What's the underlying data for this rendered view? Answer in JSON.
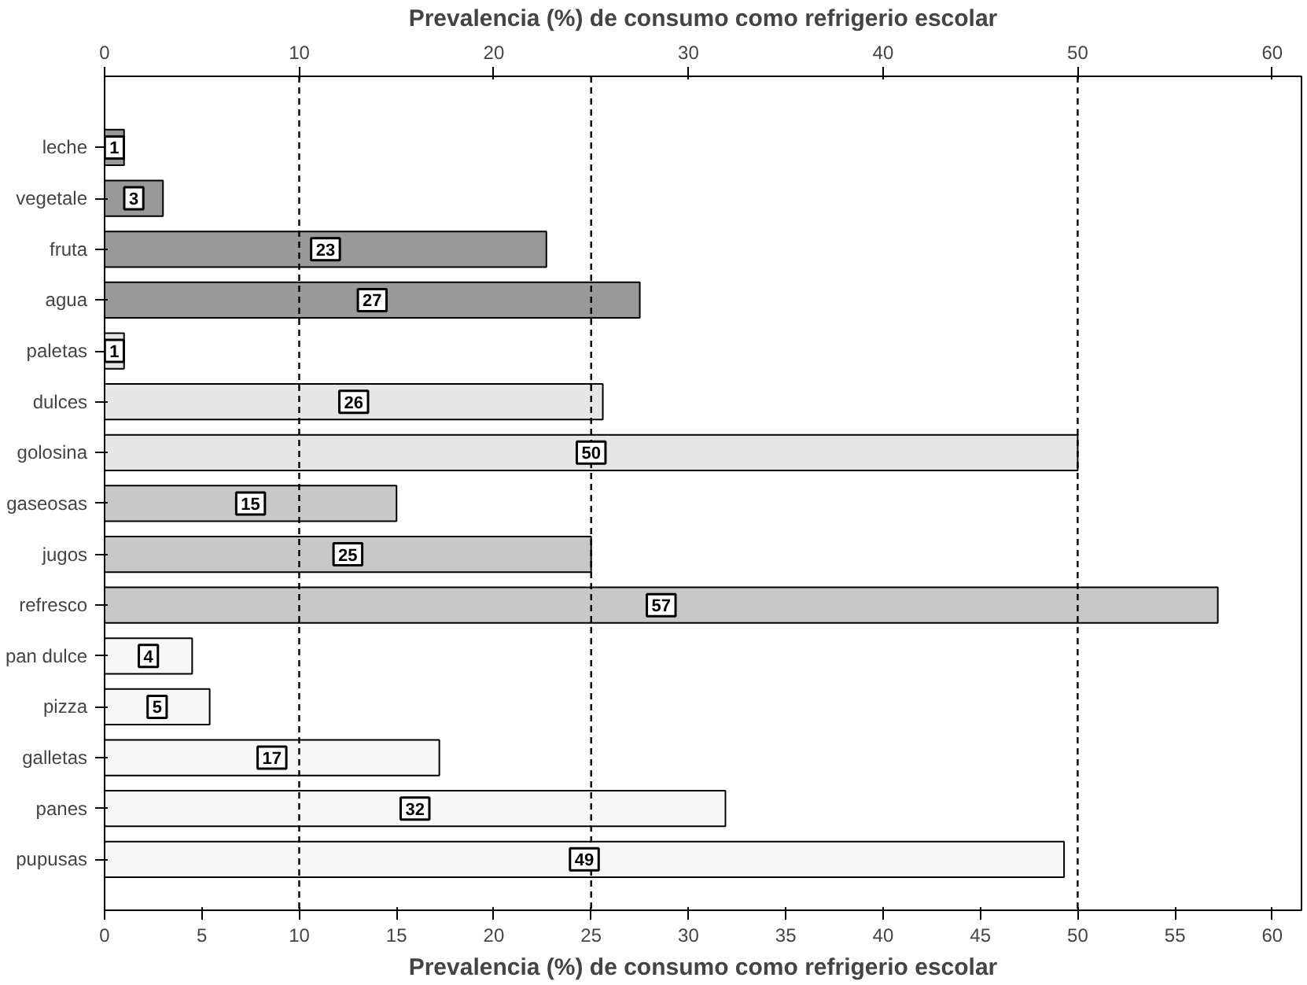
{
  "chart_data": {
    "type": "bar",
    "orientation": "horizontal",
    "x2label": "Prevalencia (%) de consumo como refrigerio escolar",
    "xlabel": "Prevalencia (%) de consumo como refrigerio escolar",
    "categories": [
      "leche",
      "vegetale",
      "fruta",
      "agua",
      "paletas",
      "dulces",
      "golosina",
      "gaseosas",
      "jugos",
      "refresco",
      "pan dulce",
      "pizza",
      "galletas",
      "panes",
      "pupusas"
    ],
    "values": [
      1.0,
      3.0,
      22.7,
      27.5,
      1.0,
      25.6,
      50.0,
      15.0,
      25.0,
      57.2,
      4.5,
      5.4,
      17.2,
      31.9,
      49.3
    ],
    "value_labels": [
      "1",
      "3",
      "23",
      "27",
      "1",
      "26",
      "50",
      "15",
      "25",
      "57",
      "4",
      "5",
      "17",
      "32",
      "49"
    ],
    "colors": [
      "#999999",
      "#999999",
      "#999999",
      "#999999",
      "#e6e6e6",
      "#e6e6e6",
      "#e6e6e6",
      "#c8c8c8",
      "#c8c8c8",
      "#c8c8c8",
      "#f7f7f7",
      "#f7f7f7",
      "#f7f7f7",
      "#f7f7f7",
      "#f7f7f7"
    ],
    "xlim": [
      0,
      61.5
    ],
    "xticks": [
      0,
      5,
      10,
      15,
      20,
      25,
      30,
      35,
      40,
      45,
      50,
      55,
      60
    ],
    "x2lim": [
      0,
      61.5
    ],
    "x2ticks": [
      0,
      10,
      20,
      30,
      40,
      50,
      60
    ],
    "ref_lines": [
      {
        "axis": "x",
        "value": 10,
        "line_style": "dashed"
      },
      {
        "axis": "x",
        "value": 25,
        "line_style": "dashed"
      },
      {
        "axis": "x",
        "value": 50,
        "line_style": "dashed"
      }
    ],
    "grid": false
  }
}
